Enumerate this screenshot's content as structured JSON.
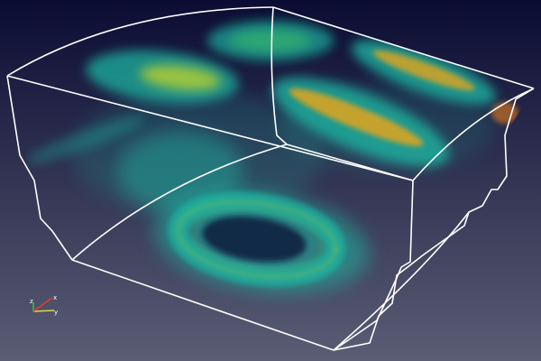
{
  "viewport": {
    "background_top": "#0b0c33",
    "background_bottom": "#5a5d74"
  },
  "volume": {
    "colormap": [
      "#1fb3a0",
      "#3fc56a",
      "#b9d12d",
      "#e3a41a",
      "#d8771c"
    ],
    "outline_color": "#ffffff"
  },
  "orientation_axes": {
    "x": {
      "label": "x",
      "color": "#e53b2f"
    },
    "y": {
      "label": "y",
      "color": "#e0d64a"
    },
    "z": {
      "label": "z",
      "color": "#33c23a"
    }
  }
}
